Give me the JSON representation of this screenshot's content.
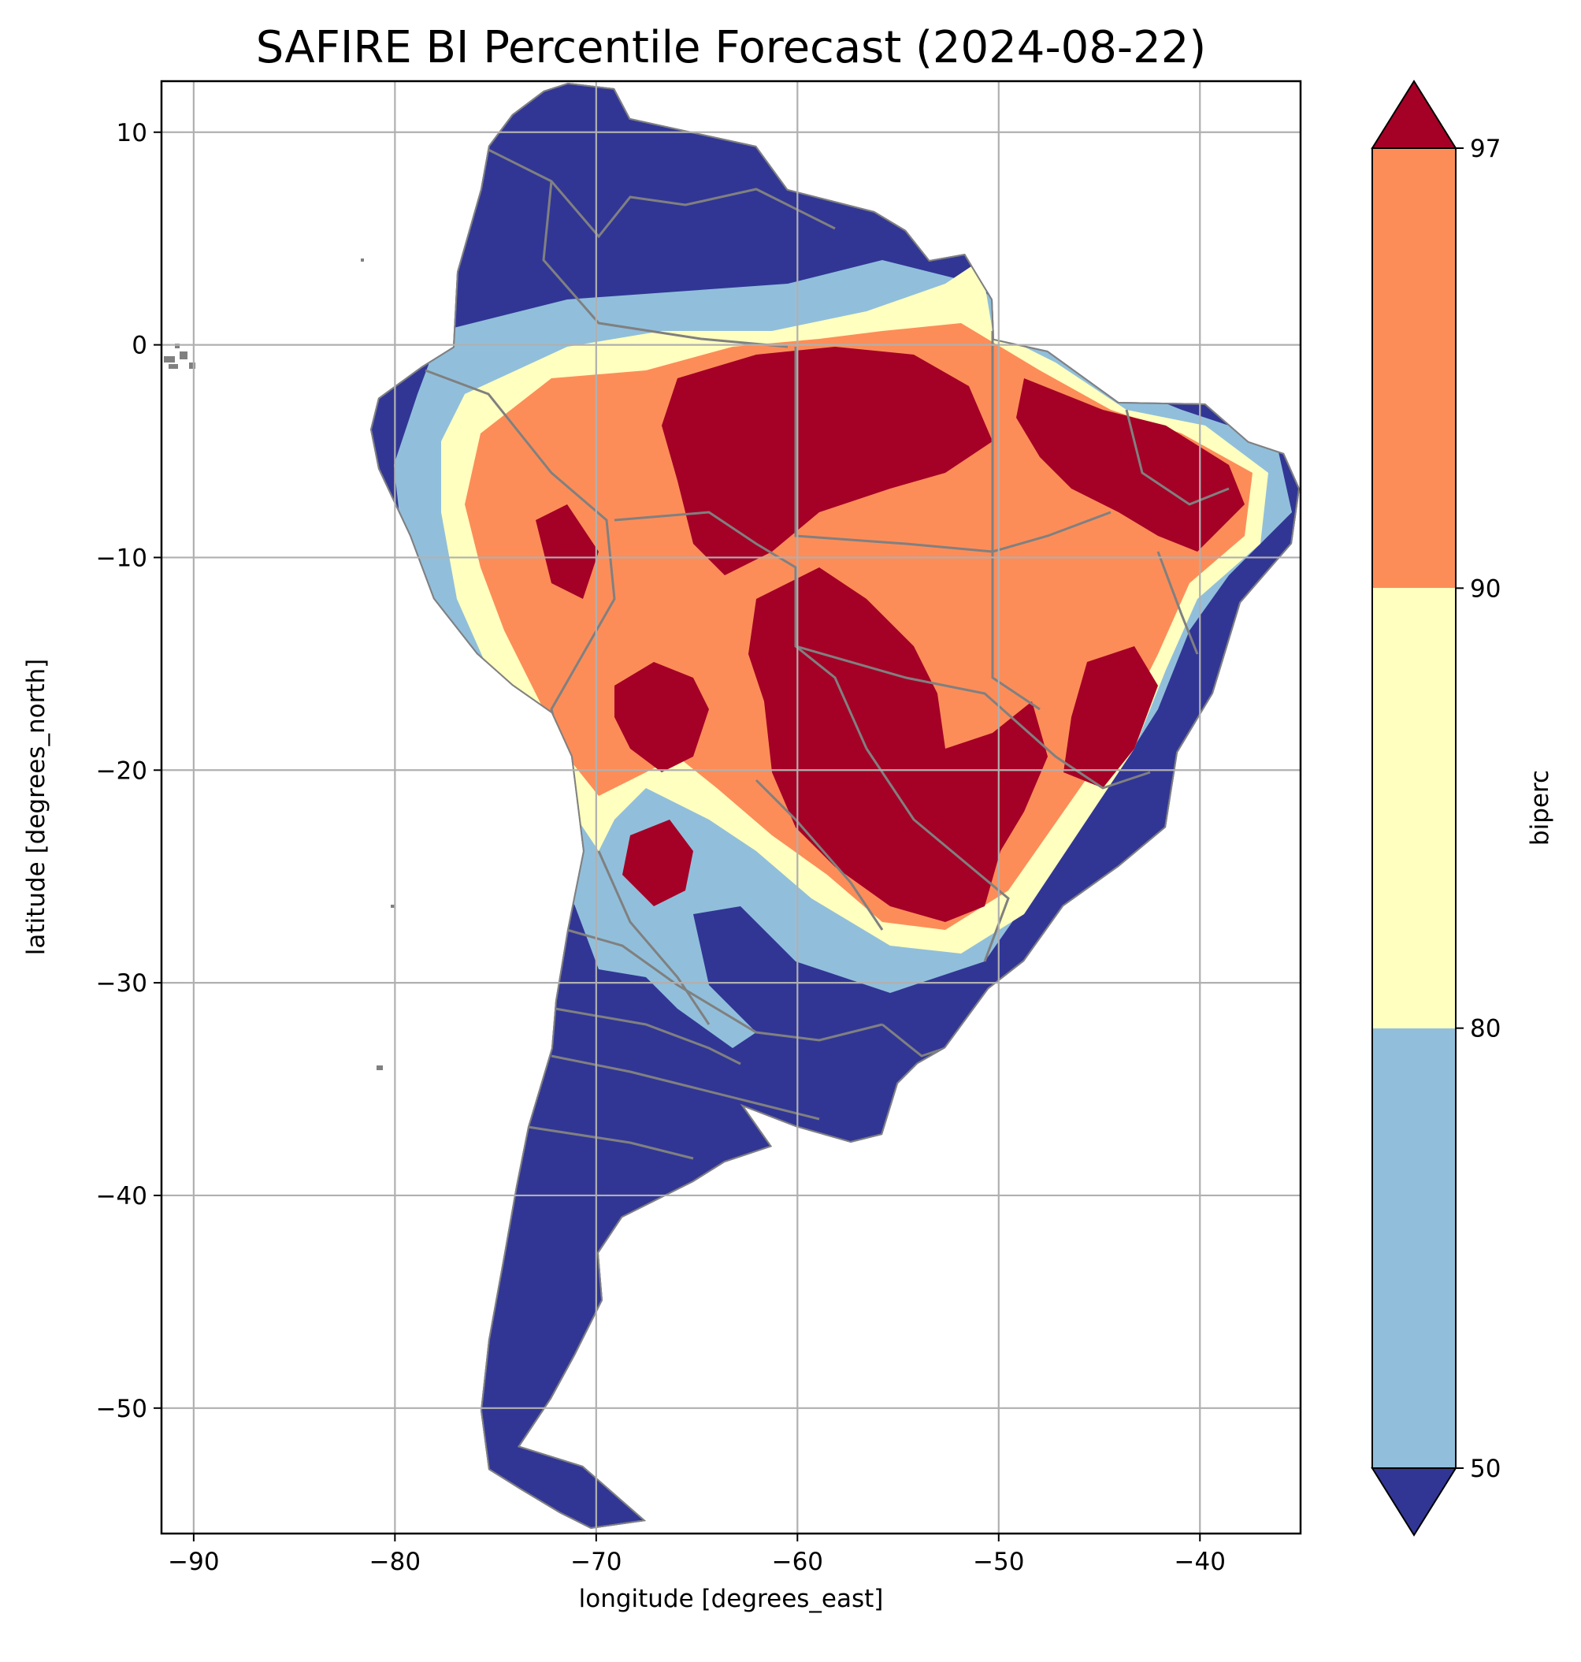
{
  "figure": {
    "title": "SAFIRE BI Percentile Forecast (2024-08-22)"
  },
  "map": {
    "xlabel": "longitude [degrees_east]",
    "ylabel": "latitude [degrees_north]",
    "xlim": [
      -91.6,
      -35
    ],
    "ylim": [
      -55.9,
      12.4
    ],
    "xticks": [
      -90,
      -80,
      -70,
      -60,
      -50,
      -40
    ],
    "yticks": [
      10,
      0,
      -10,
      -20,
      -30,
      -40,
      -50
    ],
    "xtick_labels": [
      "−90",
      "−80",
      "−70",
      "−60",
      "−50",
      "−40"
    ],
    "ytick_labels": [
      "10",
      "0",
      "−10",
      "−20",
      "−30",
      "−40",
      "−50"
    ],
    "grid": true,
    "border_color": "#808080",
    "grid_color": "#b0b0b0"
  },
  "colorbar": {
    "label": "biperc",
    "boundaries": [
      50,
      80,
      90,
      97
    ],
    "tick_labels": [
      "50",
      "80",
      "90",
      "97"
    ],
    "colors": {
      "under": "#313695",
      "band_50_80": "#91bfdb",
      "band_80_90": "#ffffbf",
      "band_90_97": "#fc8d59",
      "over": "#a50026"
    },
    "extend": "both"
  }
}
